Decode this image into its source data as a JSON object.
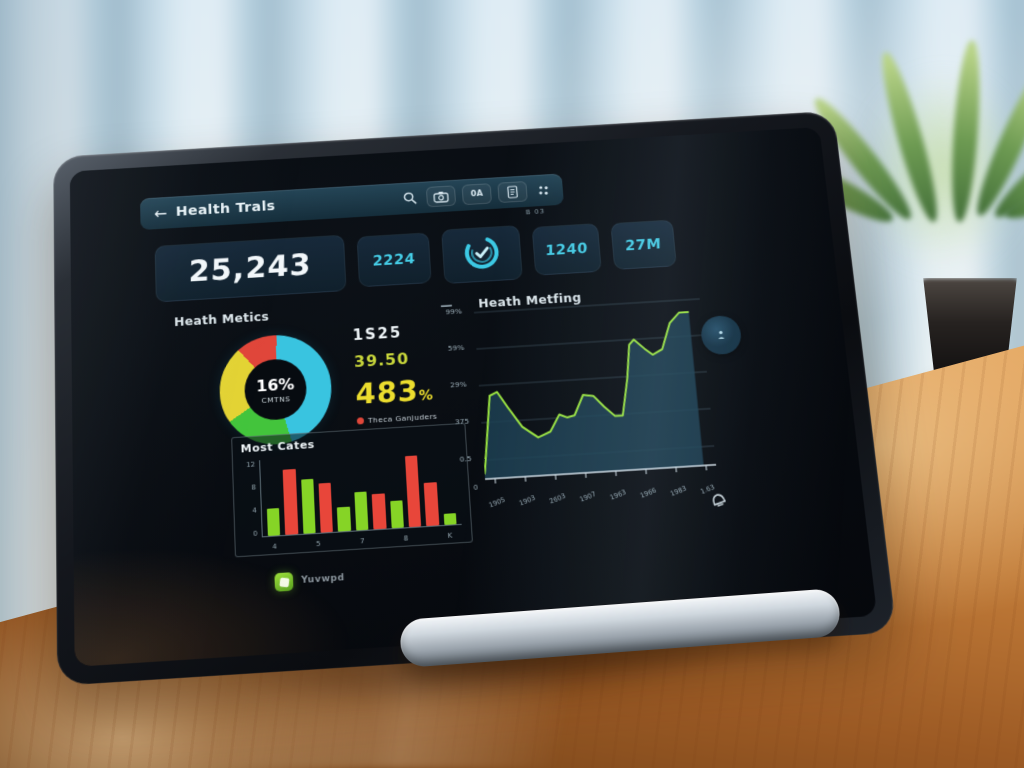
{
  "app_bar": {
    "back_glyph": "←",
    "title": "Health Trals",
    "page_indicator": "B 03",
    "buttons": [
      {
        "name": "camera"
      },
      {
        "name": "stats",
        "label": "0A"
      },
      {
        "name": "document"
      },
      {
        "name": "grid-menu"
      }
    ]
  },
  "stats": {
    "primary_value": "25,243",
    "secondary_values": [
      "2224",
      "1240",
      "27M"
    ]
  },
  "sections": {
    "left_title": "Heath Metics",
    "divider": "—",
    "right_title": "Heath Metfing"
  },
  "donut": {
    "center_value": "16%",
    "center_label": "CMTNS",
    "segments": [
      {
        "label": "red",
        "color": "#e0463a",
        "value": 12
      },
      {
        "label": "cyan",
        "color": "#39c4e0",
        "value": 45
      },
      {
        "label": "green",
        "color": "#43c43c",
        "value": 20
      },
      {
        "label": "yellow",
        "color": "#e3d334",
        "value": 23
      }
    ]
  },
  "metrics": {
    "value1": "1S25",
    "value2": "39.50",
    "value3": "483",
    "value3_unit": "%",
    "legend_label": "Theca Ganjuders",
    "legend_color": "#e0473a"
  },
  "bar_chart": {
    "type": "bar",
    "title": "Most Cates",
    "y_ticks": [
      "12",
      "8",
      "4",
      "0"
    ],
    "x_ticks": [
      "4",
      "5",
      "7",
      "8",
      "K"
    ],
    "values": [
      5,
      12,
      10,
      9,
      4.5,
      7,
      6.5,
      5,
      13,
      8,
      2
    ],
    "colors": [
      "green",
      "red",
      "green",
      "red",
      "green",
      "green",
      "red",
      "green",
      "red",
      "red",
      "green"
    ],
    "max": 14,
    "green": "#86d426",
    "red": "#e8463a"
  },
  "line_chart": {
    "type": "area",
    "y_ticks": [
      "99%",
      "59%",
      "29%",
      "375",
      "0.5"
    ],
    "origin_label": "0",
    "x_ticks": [
      "1905",
      "1903",
      "2603",
      "1907",
      "1963",
      "1966",
      "1983",
      "1.63"
    ],
    "line_color": "#9ae33f",
    "fill_color": "#1c4052",
    "points": [
      [
        0,
        3
      ],
      [
        4,
        50
      ],
      [
        7,
        52
      ],
      [
        11,
        42
      ],
      [
        16,
        30
      ],
      [
        22,
        23
      ],
      [
        27,
        26
      ],
      [
        31,
        36
      ],
      [
        34,
        34
      ],
      [
        37,
        35
      ],
      [
        41,
        47
      ],
      [
        45,
        46
      ],
      [
        49,
        39
      ],
      [
        53,
        33
      ],
      [
        56,
        33
      ],
      [
        59,
        55
      ],
      [
        61,
        76
      ],
      [
        63,
        79
      ],
      [
        67,
        73
      ],
      [
        70,
        69
      ],
      [
        74,
        72
      ],
      [
        78,
        88
      ],
      [
        82,
        94
      ],
      [
        86,
        94
      ]
    ]
  },
  "footer": {
    "app_label": "Yuvwpd"
  },
  "colors": {
    "accent_cyan": "#45cde6",
    "accent_yellow": "#ecdd2e",
    "appbar_teal": "#1d3a49",
    "card_bg": "#132330"
  }
}
